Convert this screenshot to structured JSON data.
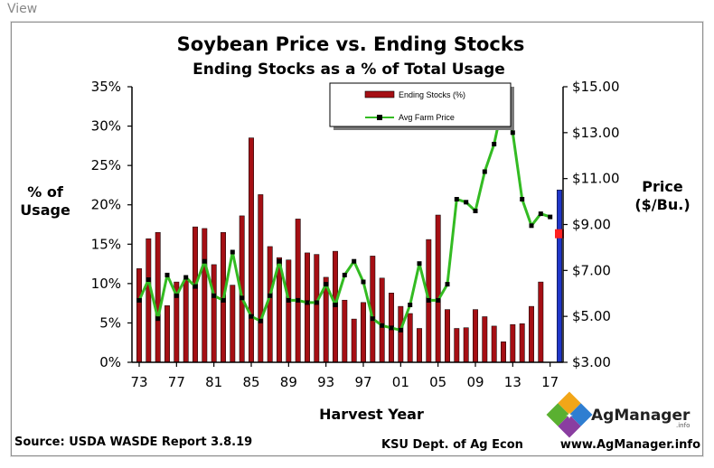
{
  "header": {
    "view_label": "View"
  },
  "chart_data": {
    "type": "bar+line",
    "title": "Soybean Price vs. Ending Stocks",
    "subtitle": "Ending Stocks as a % of Total Usage",
    "xlabel": "Harvest Year",
    "ylabel_left": [
      "% of",
      "Usage"
    ],
    "ylabel_right": [
      "Price",
      "($/Bu.)"
    ],
    "ylim_left": [
      0,
      35
    ],
    "ylim_right": [
      3,
      15
    ],
    "left_ticks": [
      "0%",
      "5%",
      "10%",
      "15%",
      "20%",
      "25%",
      "30%",
      "35%"
    ],
    "right_ticks": [
      "$3.00",
      "$5.00",
      "$7.00",
      "$9.00",
      "$11.00",
      "$13.00",
      "$15.00"
    ],
    "x_ticks": [
      "73",
      "77",
      "81",
      "85",
      "89",
      "93",
      "97",
      "01",
      "05",
      "09",
      "13",
      "17"
    ],
    "years": [
      1973,
      1974,
      1975,
      1976,
      1977,
      1978,
      1979,
      1980,
      1981,
      1982,
      1983,
      1984,
      1985,
      1986,
      1987,
      1988,
      1989,
      1990,
      1991,
      1992,
      1993,
      1994,
      1995,
      1996,
      1997,
      1998,
      1999,
      2000,
      2001,
      2002,
      2003,
      2004,
      2005,
      2006,
      2007,
      2008,
      2009,
      2010,
      2011,
      2012,
      2013,
      2014,
      2015,
      2016,
      2017,
      2018
    ],
    "series": [
      {
        "name": "Ending Stocks (%)",
        "type": "bar",
        "color": "#a50f14",
        "values": [
          11.9,
          15.7,
          16.5,
          7.2,
          10.2,
          10.5,
          17.2,
          17.0,
          12.4,
          16.5,
          9.8,
          18.6,
          28.5,
          21.3,
          14.7,
          13.3,
          13.0,
          18.2,
          13.9,
          13.7,
          10.8,
          14.1,
          7.9,
          5.5,
          7.6,
          13.5,
          10.7,
          8.8,
          7.1,
          6.2,
          4.3,
          15.6,
          18.7,
          6.7,
          4.3,
          4.4,
          6.7,
          5.8,
          4.6,
          2.6,
          4.8,
          4.9,
          7.1,
          10.2,
          null,
          21.9
        ],
        "highlight": {
          "index": 45,
          "color": "#2036c8"
        }
      },
      {
        "name": "Avg Farm Price",
        "type": "line",
        "color": "#33bb22",
        "values": [
          5.7,
          6.6,
          4.9,
          6.8,
          5.9,
          6.7,
          6.3,
          7.4,
          5.9,
          5.7,
          7.8,
          5.8,
          5.0,
          4.8,
          5.9,
          7.4,
          5.7,
          5.7,
          5.6,
          5.6,
          6.4,
          5.5,
          6.8,
          7.4,
          6.5,
          4.9,
          4.6,
          4.5,
          4.4,
          5.5,
          7.3,
          5.7,
          5.7,
          6.4,
          10.1,
          9.97,
          9.59,
          11.3,
          12.5,
          14.4,
          13.0,
          10.1,
          8.95,
          9.47,
          9.33,
          null
        ]
      }
    ],
    "projection": {
      "year": 2018,
      "price": 8.6,
      "color": "#ff2020"
    }
  },
  "footer": {
    "source": "Source:  USDA WASDE Report 3.8.19",
    "dept": "KSU Dept. of Ag Econ",
    "url": "www.AgManager.info"
  },
  "brand": {
    "name": "AgManager",
    "sub": ".info"
  }
}
